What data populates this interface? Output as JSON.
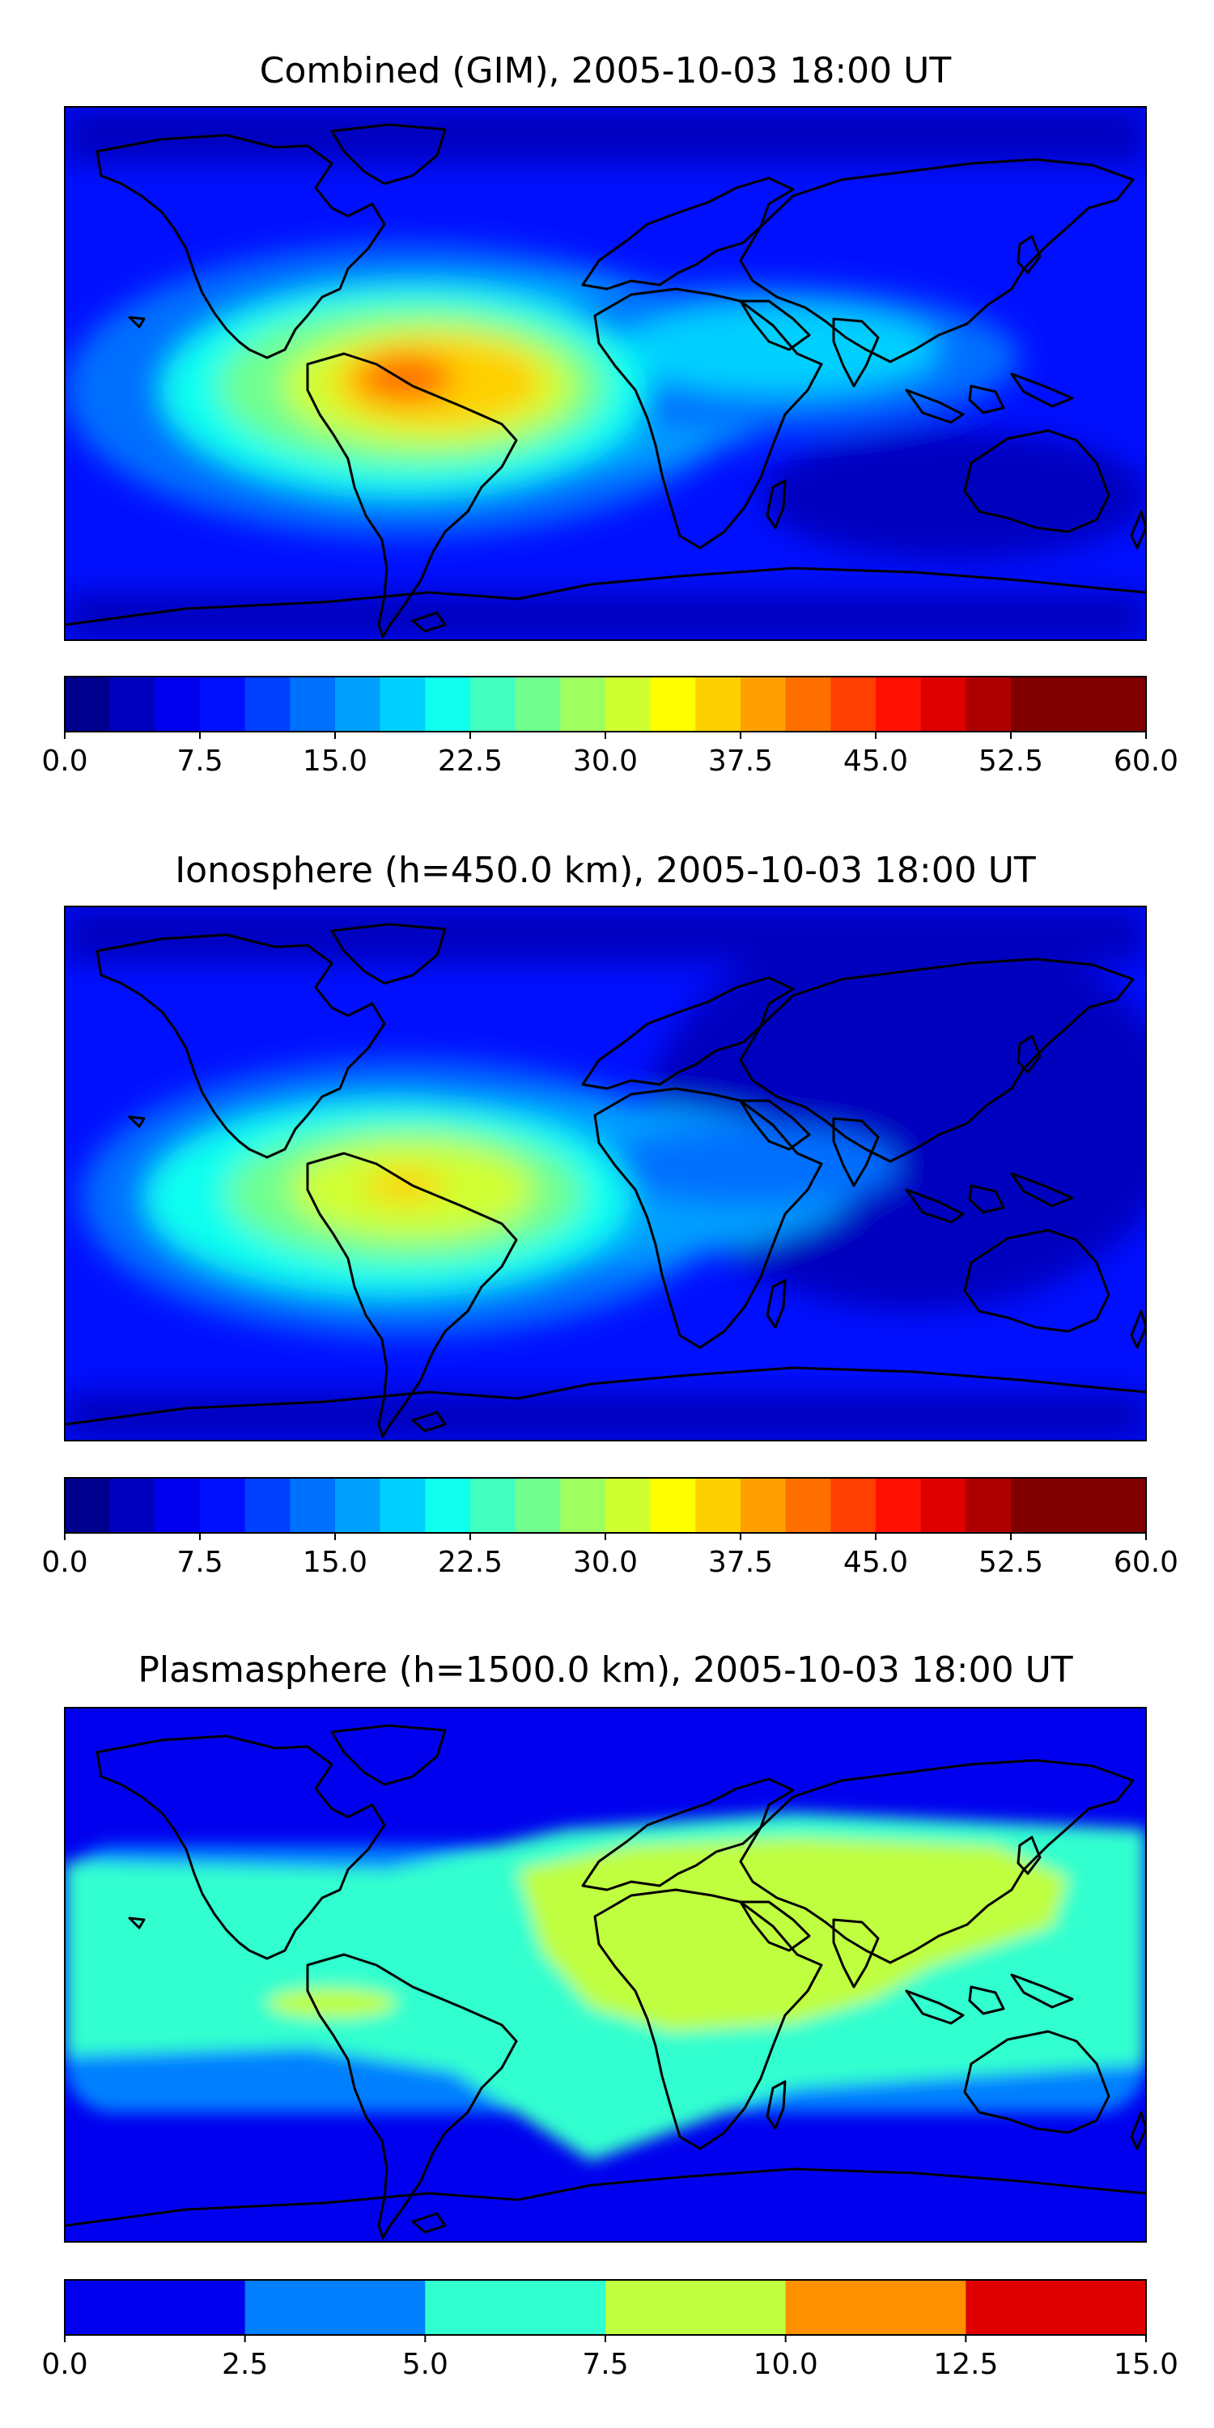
{
  "page": {
    "background": "#ffffff"
  },
  "chart_data": [
    {
      "type": "heatmap",
      "title": "Combined (GIM), 2005-10-03 18:00 UT",
      "xlabel": "",
      "ylabel": "",
      "grid": false,
      "content": "global world map with filled contours",
      "colorbar": {
        "min": 0.0,
        "max": 60.0,
        "levels": 24,
        "ticks": [
          "0.0",
          "7.5",
          "15.0",
          "22.5",
          "30.0",
          "37.5",
          "45.0",
          "52.5",
          "60.0"
        ],
        "colormap": [
          "#00008f",
          "#0000bf",
          "#0000ef",
          "#0010ff",
          "#0040ff",
          "#0070ff",
          "#00a0ff",
          "#00d0ff",
          "#10ffef",
          "#40ffbf",
          "#70ff8f",
          "#a0ff60",
          "#d0ff30",
          "#ffff00",
          "#ffd000",
          "#ffa000",
          "#ff7000",
          "#ff4000",
          "#ff1000",
          "#df0000",
          "#af0000",
          "#800000",
          "#800000",
          "#800000"
        ]
      },
      "regions": [
        {
          "name": "South America / equatorial Atlantic maximum",
          "value": 45
        },
        {
          "name": "Africa / Indian Ocean band",
          "value": 22
        },
        {
          "name": "Polar regions",
          "value": 3
        }
      ]
    },
    {
      "type": "heatmap",
      "title": "Ionosphere  (h=450.0 km), 2005-10-03 18:00 UT",
      "xlabel": "",
      "ylabel": "",
      "grid": false,
      "content": "global world map with filled contours",
      "colorbar": {
        "min": 0.0,
        "max": 60.0,
        "levels": 24,
        "ticks": [
          "0.0",
          "7.5",
          "15.0",
          "22.5",
          "30.0",
          "37.5",
          "45.0",
          "52.5",
          "60.0"
        ],
        "colormap": [
          "#00008f",
          "#0000bf",
          "#0000ef",
          "#0010ff",
          "#0040ff",
          "#0070ff",
          "#00a0ff",
          "#00d0ff",
          "#10ffef",
          "#40ffbf",
          "#70ff8f",
          "#a0ff60",
          "#d0ff30",
          "#ffff00",
          "#ffd000",
          "#ffa000",
          "#ff7000",
          "#ff4000",
          "#ff1000",
          "#df0000",
          "#af0000",
          "#800000",
          "#800000",
          "#800000"
        ]
      },
      "regions": [
        {
          "name": "South America / equatorial Atlantic maximum",
          "value": 38
        },
        {
          "name": "Africa / Indian Ocean band",
          "value": 15
        },
        {
          "name": "Asia / Pacific",
          "value": 3
        }
      ]
    },
    {
      "type": "heatmap",
      "title": "Plasmasphere (h=1500.0 km), 2005-10-03 18:00 UT",
      "xlabel": "",
      "ylabel": "",
      "grid": false,
      "content": "global world map with filled contours",
      "colorbar": {
        "min": 0.0,
        "max": 15.0,
        "levels": 6,
        "ticks": [
          "0.0",
          "2.5",
          "5.0",
          "7.5",
          "10.0",
          "12.5",
          "15.0"
        ],
        "colormap": [
          "#0000ef",
          "#0080ff",
          "#30ffcf",
          "#c0ff40",
          "#ff9000",
          "#e00000"
        ]
      },
      "regions": [
        {
          "name": "Africa / Asia maximum",
          "value": 8.5
        },
        {
          "name": "Tropical band",
          "value": 6
        },
        {
          "name": "Polar regions",
          "value": 2
        }
      ]
    }
  ]
}
